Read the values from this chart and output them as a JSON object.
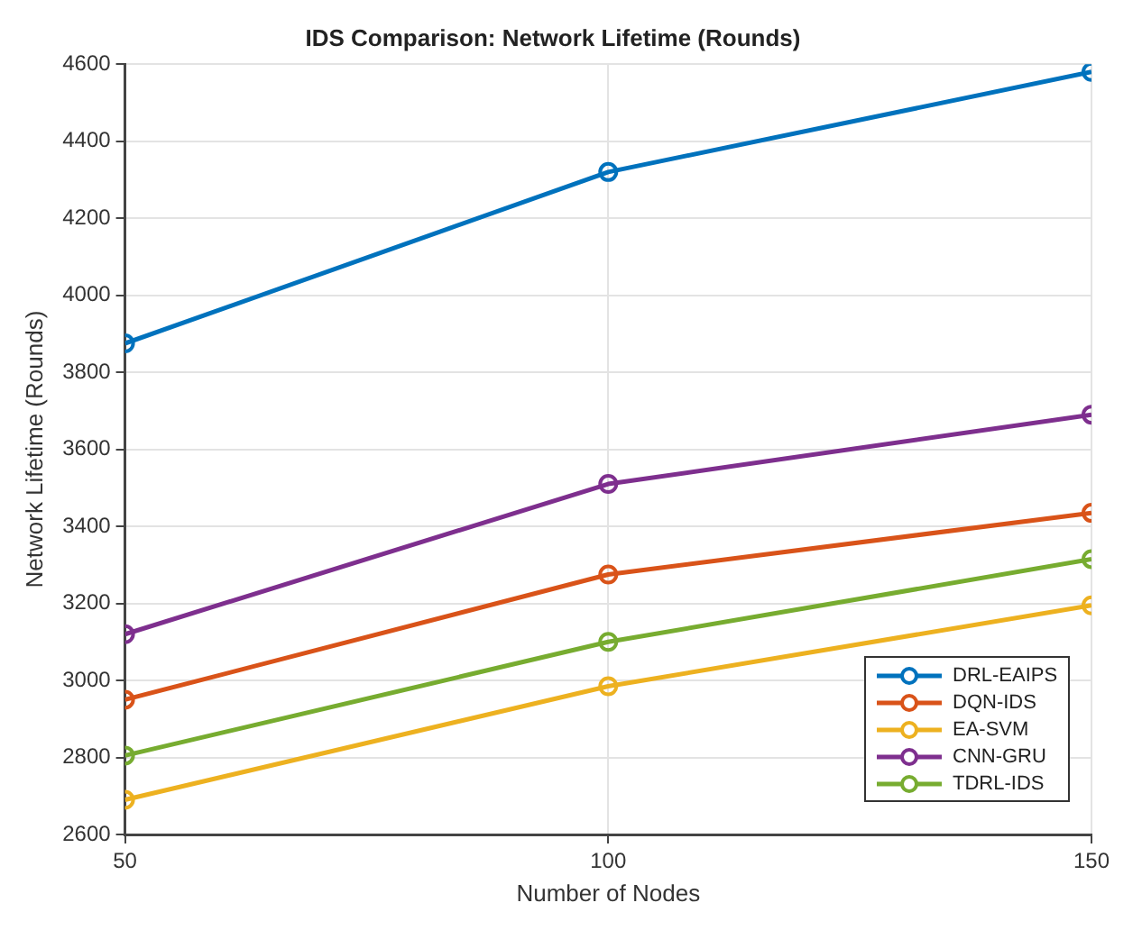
{
  "chart_data": {
    "type": "line",
    "title": "IDS Comparison: Network Lifetime (Rounds)",
    "xlabel": "Number of Nodes",
    "ylabel": "Network Lifetime (Rounds)",
    "x": [
      50,
      100,
      150
    ],
    "xlim": [
      50,
      150
    ],
    "xticks": [
      50,
      100,
      150
    ],
    "ylim": [
      2600,
      4600
    ],
    "yticks": [
      2600,
      2800,
      3000,
      3200,
      3400,
      3600,
      3800,
      4000,
      4200,
      4400,
      4600
    ],
    "grid": true,
    "legend": "bottom right",
    "marker": "circle",
    "line_style": "solid",
    "series": [
      {
        "name": "DRL-EAIPS",
        "color": "#0072bd",
        "values": [
          3875,
          4320,
          4580
        ]
      },
      {
        "name": "DQN-IDS",
        "color": "#d95319",
        "values": [
          2950,
          3275,
          3435
        ]
      },
      {
        "name": "EA-SVM",
        "color": "#edb120",
        "values": [
          2690,
          2985,
          3195
        ]
      },
      {
        "name": "CNN-GRU",
        "color": "#7e2f8e",
        "values": [
          3120,
          3510,
          3690
        ]
      },
      {
        "name": "TDRL-IDS",
        "color": "#77ac30",
        "values": [
          2805,
          3100,
          3315
        ]
      }
    ]
  }
}
